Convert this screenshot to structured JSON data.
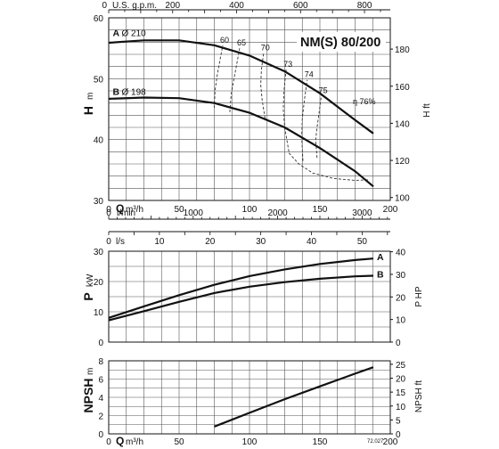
{
  "chart_data": [
    {
      "type": "line",
      "title": "NM(S) 80/200",
      "xlabel": "Q m³/h",
      "ylabel": "H m",
      "ylabel_right": "H ft",
      "xlim": [
        0,
        200
      ],
      "ylim": [
        30,
        60
      ],
      "x_ticks": [
        0,
        50,
        100,
        150,
        200
      ],
      "y_ticks": [
        30,
        40,
        50,
        60
      ],
      "top_axis": {
        "label": "U.S. g.p.m.",
        "ticks": [
          0,
          200,
          400,
          600,
          800
        ]
      },
      "right_ticks": [
        100,
        120,
        140,
        160,
        180
      ],
      "lower_axes": [
        {
          "label": "l/min",
          "ticks": [
            0,
            1000,
            2000,
            3000
          ]
        },
        {
          "label": "l/s",
          "ticks": [
            0,
            10,
            20,
            30,
            40,
            50
          ]
        }
      ],
      "grid": true,
      "series": [
        {
          "name": "A",
          "label": "Ø 210",
          "x": [
            0,
            25,
            50,
            75,
            100,
            125,
            150,
            175,
            188
          ],
          "y": [
            55.9,
            56.3,
            56.3,
            55.5,
            53.8,
            51.2,
            47.6,
            43.2,
            41
          ]
        },
        {
          "name": "B",
          "label": "Ø 198",
          "x": [
            0,
            25,
            50,
            75,
            100,
            125,
            150,
            175,
            188
          ],
          "y": [
            46.7,
            46.9,
            46.8,
            46.0,
            44.4,
            42.0,
            38.6,
            34.8,
            32.3
          ]
        }
      ],
      "efficiency_curves": [
        {
          "label": "60",
          "x": [
            75,
            75.5,
            77,
            79,
            81
          ],
          "y": [
            45.2,
            48,
            50.5,
            53,
            55.5
          ]
        },
        {
          "label": "65",
          "x": [
            86,
            87,
            89,
            91,
            93
          ],
          "y": [
            44.5,
            47.5,
            50,
            52.5,
            55
          ]
        },
        {
          "label": "70",
          "x": [
            111,
            109,
            108,
            108.5,
            110
          ],
          "y": [
            43.5,
            46.5,
            49,
            51.5,
            54.2
          ]
        },
        {
          "label": "73",
          "x": [
            128,
            125,
            124,
            124.5,
            126
          ],
          "y": [
            38,
            42,
            45,
            48,
            51.5
          ]
        },
        {
          "label": "74",
          "x": [
            138,
            137,
            137.5,
            139,
            141
          ],
          "y": [
            36.5,
            40.5,
            43.5,
            46.5,
            49.8
          ]
        },
        {
          "label": "75",
          "x": [
            148,
            147,
            148,
            149.5,
            151
          ],
          "y": [
            37,
            40,
            42,
            44.5,
            47.2
          ]
        }
      ],
      "efficiency_envelope_x": [
        128,
        135,
        145,
        160,
        175,
        185
      ],
      "efficiency_envelope_y": [
        37.8,
        36,
        34.5,
        33.6,
        33.3,
        33.4
      ],
      "efficiency_peak_label": "η 76%"
    },
    {
      "type": "line",
      "xlabel": "",
      "ylabel": "P kW",
      "ylabel_right": "P HP",
      "xlim": [
        0,
        200
      ],
      "ylim": [
        0,
        30
      ],
      "y_ticks": [
        0,
        10,
        20,
        30
      ],
      "right_ticks": [
        0,
        10,
        20,
        30,
        40
      ],
      "grid": true,
      "series": [
        {
          "name": "A",
          "x": [
            0,
            25,
            50,
            75,
            100,
            125,
            150,
            175,
            188
          ],
          "y": [
            8,
            11.8,
            15.5,
            18.9,
            21.8,
            24,
            25.8,
            27.1,
            27.6
          ]
        },
        {
          "name": "B",
          "x": [
            0,
            25,
            50,
            75,
            100,
            125,
            150,
            175,
            188
          ],
          "y": [
            7.2,
            10.2,
            13.3,
            16.2,
            18.3,
            19.8,
            20.9,
            21.7,
            21.9
          ]
        }
      ]
    },
    {
      "type": "line",
      "xlabel": "Q m³/h",
      "ylabel": "NPSH m",
      "ylabel_right": "NPSH ft",
      "xlim": [
        0,
        200
      ],
      "ylim": [
        0,
        8
      ],
      "x_ticks": [
        0,
        50,
        100,
        150,
        200
      ],
      "y_ticks": [
        0,
        2,
        4,
        6,
        8
      ],
      "right_ticks": [
        0,
        5,
        10,
        15,
        20,
        25
      ],
      "grid": true,
      "series": [
        {
          "x": [
            75,
            100,
            125,
            150,
            175,
            188
          ],
          "y": [
            0.8,
            2.3,
            3.8,
            5.2,
            6.6,
            7.3
          ]
        }
      ]
    }
  ],
  "footnote": "72.027"
}
